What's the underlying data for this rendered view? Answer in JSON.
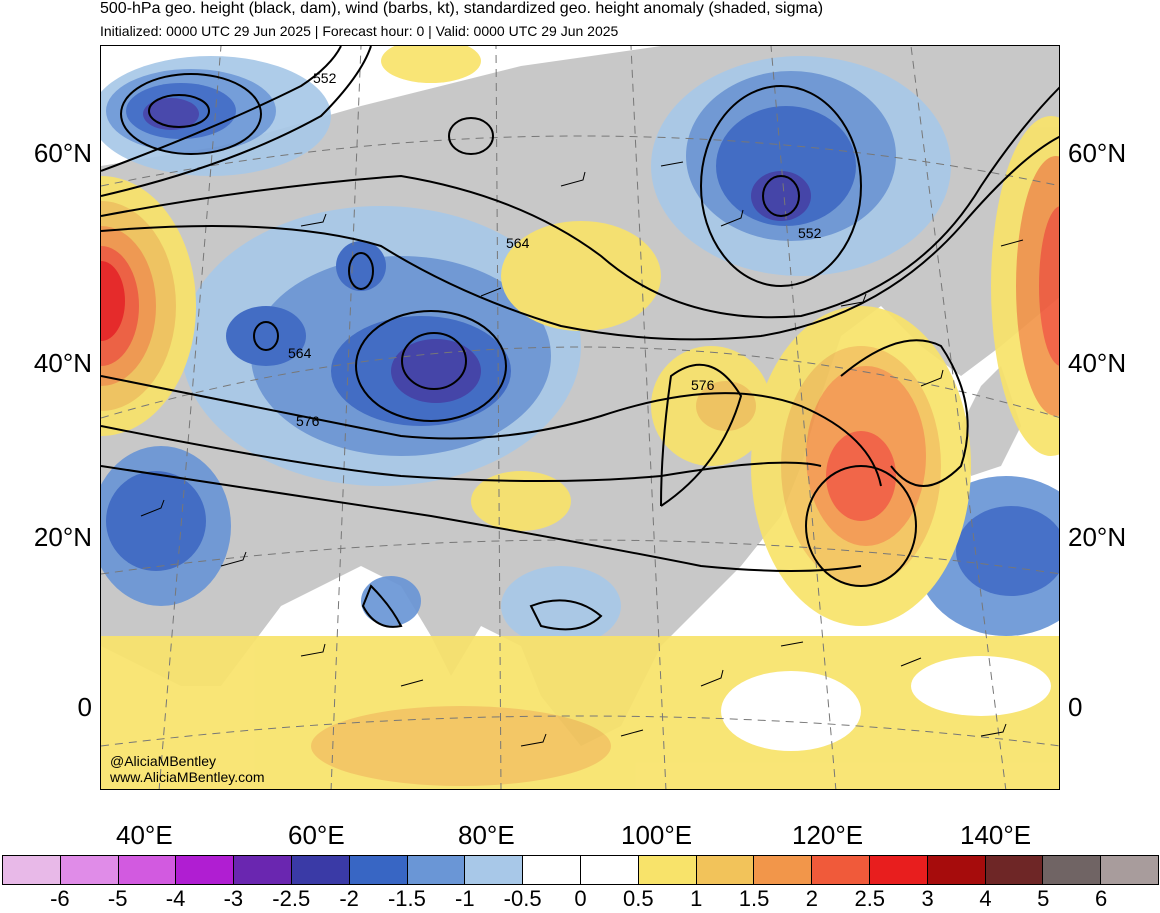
{
  "title": "500-hPa geo. height (black, dam), wind (barbs, kt), standardized geo. height anomaly (shaded, sigma)",
  "subtitle": "Initialized: 0000 UTC 29 Jun 2025 | Forecast hour: 0 | Valid: 0000 UTC 29 Jun 2025",
  "latitude_labels": [
    "60°N",
    "40°N",
    "20°N",
    "0"
  ],
  "longitude_labels": [
    "40°E",
    "60°E",
    "80°E",
    "100°E",
    "120°E",
    "140°E"
  ],
  "contour_labels": [
    "552",
    "564",
    "564",
    "576",
    "552",
    "576"
  ],
  "watermark": {
    "handle": "@AliciaMBentley",
    "website": "www.AliciaMBentley.com"
  },
  "colorbar": {
    "labels": [
      "-6",
      "-5",
      "-4",
      "-3",
      "-2.5",
      "-2",
      "-1.5",
      "-1",
      "-0.5",
      "0",
      "0.5",
      "1",
      "1.5",
      "2",
      "2.5",
      "3",
      "4",
      "5",
      "6"
    ],
    "colors": [
      "#e8b9e8",
      "#e08ce8",
      "#d25ae0",
      "#b01ed2",
      "#6a26b0",
      "#3a3aa6",
      "#3866c4",
      "#6a96d6",
      "#a8c8e8",
      "#ffffff",
      "#ffffff",
      "#f8e36a",
      "#f2c35a",
      "#f2964a",
      "#f05a3a",
      "#e81e1e",
      "#a60c0c",
      "#6e2626",
      "#706464",
      "#a89c9c"
    ]
  },
  "land_color": "#c8c8c8"
}
